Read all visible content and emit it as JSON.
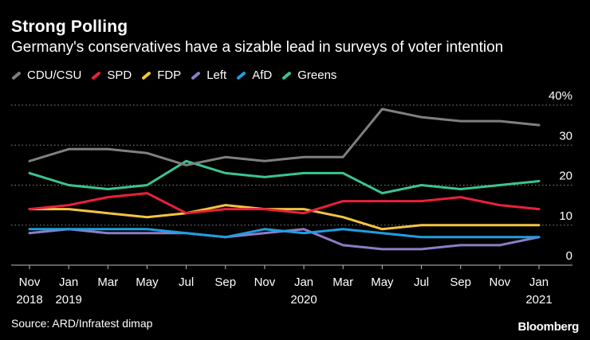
{
  "title": "Strong Polling",
  "subtitle": "Germany's conservatives have a sizable lead in surveys of voter intention",
  "source": "Source: ARD/Infratest dimap",
  "brand": "Bloomberg",
  "chart_data": {
    "type": "line",
    "title": "Strong Polling",
    "subtitle": "Germany's conservatives have a sizable lead in surveys of voter intention",
    "xlabel": "",
    "ylabel": "%",
    "ylim": [
      0,
      40
    ],
    "yticks": [
      0,
      10,
      20,
      30,
      40
    ],
    "ytick_labels": [
      "0",
      "10",
      "20",
      "30",
      "40%"
    ],
    "grid": true,
    "legend_position": "top-left",
    "x_ticks": [
      {
        "line1": "Nov",
        "line2": "2018"
      },
      {
        "line1": "Jan",
        "line2": "2019"
      },
      {
        "line1": "Mar",
        "line2": ""
      },
      {
        "line1": "May",
        "line2": ""
      },
      {
        "line1": "Jul",
        "line2": ""
      },
      {
        "line1": "Sep",
        "line2": ""
      },
      {
        "line1": "Nov",
        "line2": ""
      },
      {
        "line1": "Jan",
        "line2": "2020"
      },
      {
        "line1": "Mar",
        "line2": ""
      },
      {
        "line1": "May",
        "line2": ""
      },
      {
        "line1": "Jul",
        "line2": ""
      },
      {
        "line1": "Sep",
        "line2": ""
      },
      {
        "line1": "Nov",
        "line2": ""
      },
      {
        "line1": "Jan",
        "line2": "2021"
      }
    ],
    "series": [
      {
        "name": "CDU/CSU",
        "color": "#7f7f7f",
        "values": [
          26,
          29,
          29,
          28,
          25,
          27,
          26,
          27,
          27,
          39,
          37,
          36,
          36,
          35
        ]
      },
      {
        "name": "SPD",
        "color": "#e8213b",
        "values": [
          14,
          15,
          17,
          18,
          13,
          14,
          14,
          13,
          16,
          16,
          16,
          17,
          15,
          14
        ]
      },
      {
        "name": "FDP",
        "color": "#f5c342",
        "values": [
          14,
          14,
          13,
          12,
          13,
          15,
          14,
          14,
          12,
          9,
          10,
          10,
          10,
          10
        ]
      },
      {
        "name": "Left",
        "color": "#8e7cc3",
        "values": [
          8,
          9,
          8,
          8,
          8,
          7,
          8,
          9,
          5,
          4,
          4,
          5,
          5,
          7
        ]
      },
      {
        "name": "AfD",
        "color": "#1f9ee0",
        "values": [
          9,
          9,
          9,
          9,
          8,
          7,
          9,
          8,
          9,
          8,
          7,
          7,
          7,
          7
        ]
      },
      {
        "name": "Greens",
        "color": "#3cc48f",
        "values": [
          23,
          20,
          19,
          20,
          26,
          23,
          22,
          23,
          23,
          18,
          20,
          19,
          20,
          21
        ]
      }
    ]
  }
}
